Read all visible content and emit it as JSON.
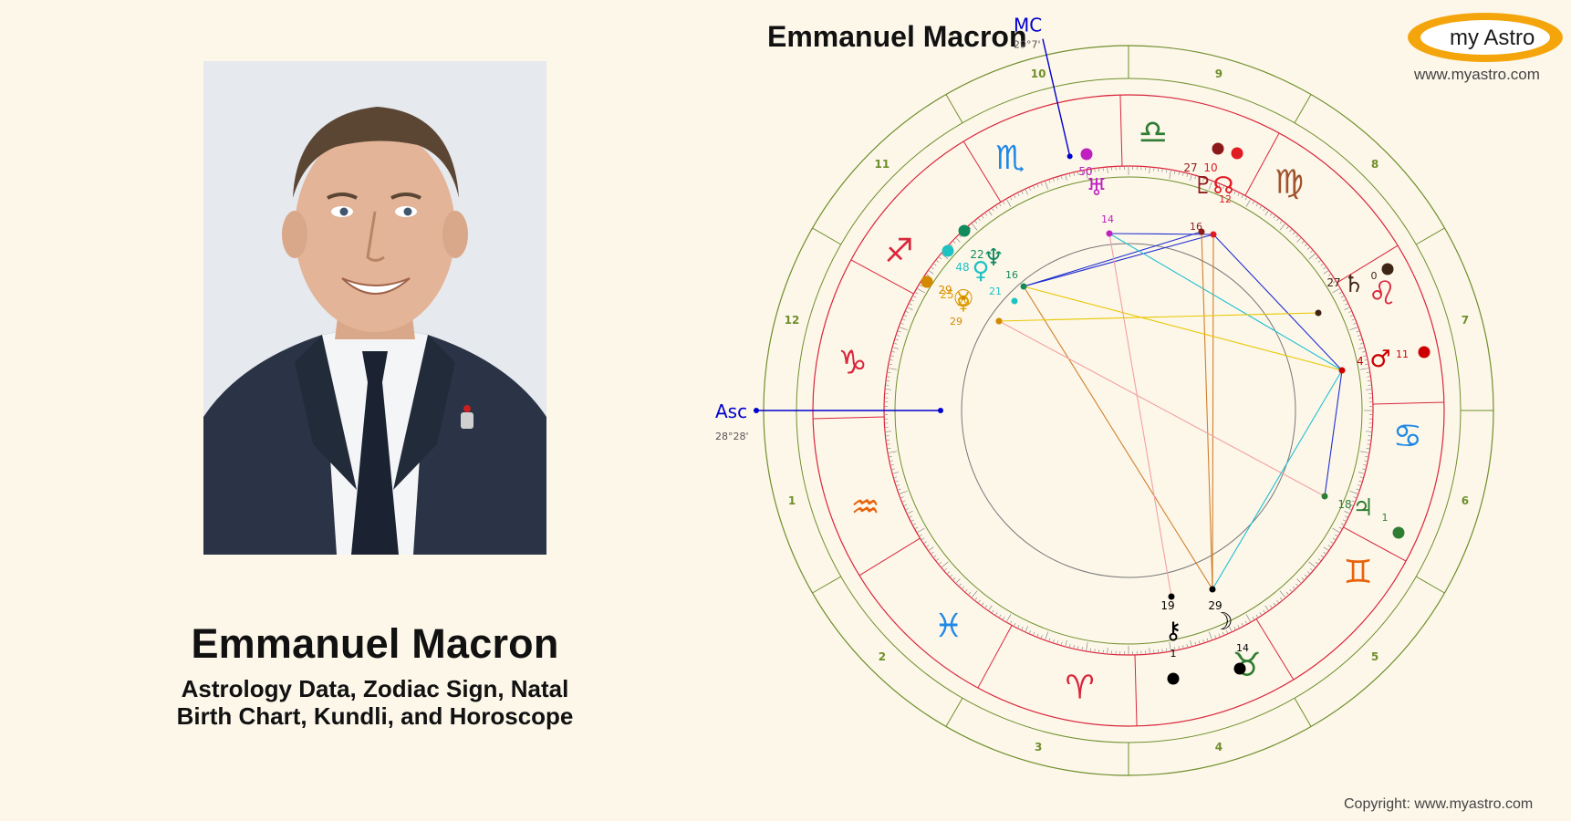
{
  "person": {
    "name": "Emmanuel Macron",
    "subtitle_line1": "Astrology Data, Zodiac Sign, Natal",
    "subtitle_line2": "Birth Chart, Kundli, and Horoscope"
  },
  "chart_title": "Emmanuel Macron",
  "logo": {
    "text": "my Astro",
    "url": "www.myastro.com"
  },
  "copyright": "Copyright: www.myastro.com",
  "colors": {
    "background": "#fdf7ea",
    "logo_orange": "#f5a50c",
    "house_ring": "#6f8f2b",
    "zodiac_ring": "#d9263c",
    "axis_blue": "#0000cc"
  },
  "angles": {
    "asc": {
      "label": "Asc",
      "value": "28°28'"
    },
    "mc": {
      "label": "MC",
      "value": "29°7'"
    }
  },
  "houses": [
    "1",
    "2",
    "3",
    "4",
    "5",
    "6",
    "7",
    "8",
    "9",
    "10",
    "11",
    "12"
  ],
  "signs": [
    {
      "name": "Aries",
      "glyph": "♈",
      "color": "#d9263c"
    },
    {
      "name": "Taurus",
      "glyph": "♉",
      "color": "#2e7d32"
    },
    {
      "name": "Gemini",
      "glyph": "♊",
      "color": "#e8620c"
    },
    {
      "name": "Cancer",
      "glyph": "♋",
      "color": "#1e88e5"
    },
    {
      "name": "Leo",
      "glyph": "♌",
      "color": "#d9263c"
    },
    {
      "name": "Virgo",
      "glyph": "♍",
      "color": "#a0522d"
    },
    {
      "name": "Libra",
      "glyph": "♎",
      "color": "#2e7d32"
    },
    {
      "name": "Scorpio",
      "glyph": "♏",
      "color": "#1e88e5"
    },
    {
      "name": "Sagittarius",
      "glyph": "♐",
      "color": "#d9263c"
    },
    {
      "name": "Capricorn",
      "glyph": "♑",
      "color": "#d9263c"
    },
    {
      "name": "Aquarius",
      "glyph": "♒",
      "color": "#e8620c"
    },
    {
      "name": "Pisces",
      "glyph": "♓",
      "color": "#1e88e5"
    }
  ],
  "planets": [
    {
      "name": "Moon",
      "glyph": "☽",
      "color": "#000000",
      "deg": "29",
      "min": "14"
    },
    {
      "name": "Chiron",
      "glyph": "⚷",
      "color": "#000000",
      "deg": "19",
      "min": "1"
    },
    {
      "name": "Jupiter",
      "glyph": "♃",
      "color": "#2e7d32",
      "deg": "18",
      "min": "1"
    },
    {
      "name": "Mars",
      "glyph": "♂",
      "color": "#cc0000",
      "deg": "4",
      "min": "11"
    },
    {
      "name": "Saturn",
      "glyph": "♄",
      "color": "#3e2414",
      "deg": "27",
      "min": "0"
    },
    {
      "name": "Node",
      "glyph": "☊",
      "color": "#e01b24",
      "deg": "10",
      "min": "12"
    },
    {
      "name": "Pluto",
      "glyph": "♇",
      "color": "#8b1a1a",
      "deg": "27",
      "min": "16"
    },
    {
      "name": "Uranus",
      "glyph": "♅",
      "color": "#c020c0",
      "deg": "50",
      "min": "14"
    },
    {
      "name": "Neptune",
      "glyph": "♆",
      "color": "#138a5e",
      "deg": "22",
      "min": "16"
    },
    {
      "name": "Venus",
      "glyph": "♀",
      "color": "#1fc2c2",
      "deg": "48",
      "min": "21"
    },
    {
      "name": "Mercury",
      "glyph": "☿",
      "color": "#e0a000",
      "deg": "25",
      "min": "29"
    },
    {
      "name": "Sun",
      "glyph": "☉",
      "color": "#d48a00",
      "deg": "29",
      "min": "29"
    }
  ]
}
